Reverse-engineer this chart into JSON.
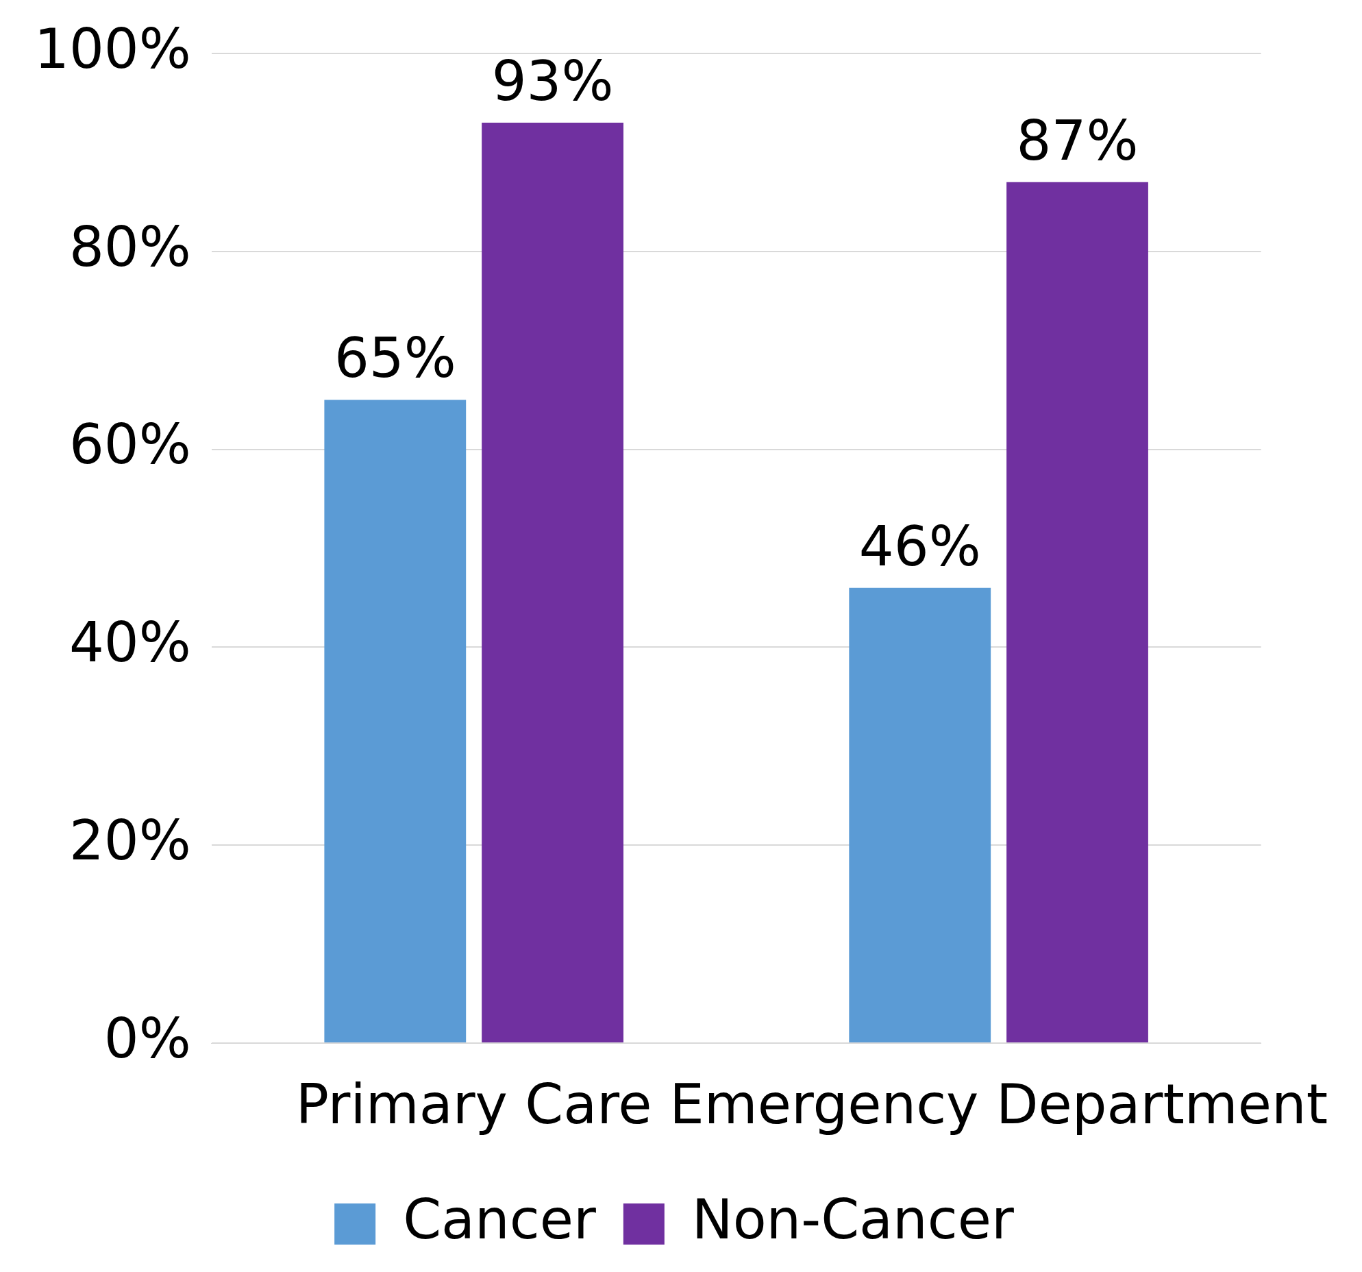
{
  "chart_data": {
    "type": "bar",
    "categories": [
      "Primary Care",
      "Emergency Department"
    ],
    "series": [
      {
        "name": "Cancer",
        "color": "#5b9bd5",
        "values": [
          65,
          46
        ]
      },
      {
        "name": "Non-Cancer",
        "color": "#7030a0",
        "values": [
          93,
          87
        ]
      }
    ],
    "ylim": [
      0,
      100
    ],
    "yticks": [
      {
        "value": 0,
        "label": "0%"
      },
      {
        "value": 20,
        "label": "20%"
      },
      {
        "value": 40,
        "label": "40%"
      },
      {
        "value": 60,
        "label": "60%"
      },
      {
        "value": 80,
        "label": "80%"
      },
      {
        "value": 100,
        "label": "100%"
      }
    ],
    "value_labels": [
      [
        "65%",
        "46%"
      ],
      [
        "93%",
        "87%"
      ]
    ],
    "grid": "y",
    "legend": "bottom"
  }
}
